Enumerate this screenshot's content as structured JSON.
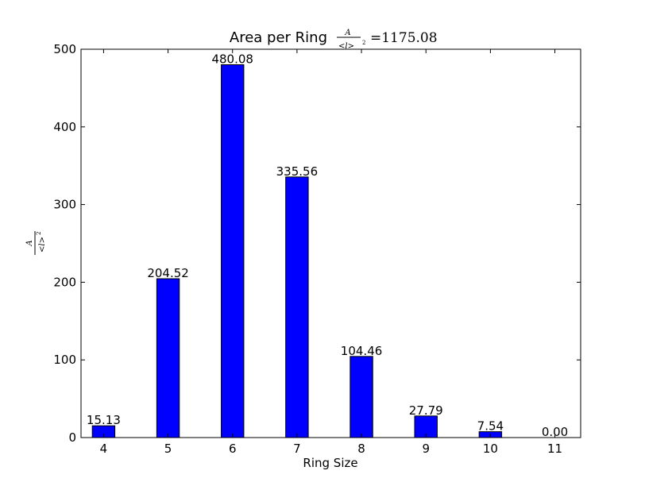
{
  "chart_data": {
    "type": "bar",
    "title": "Area per Ring",
    "title_formula": {
      "numerator": "A",
      "denominator": "<l>",
      "exponent": "2",
      "value": "=1175.08"
    },
    "xlabel": "Ring Size",
    "ylabel_formula": {
      "numerator": "A",
      "denominator": "<l>",
      "exponent": "2"
    },
    "categories": [
      "4",
      "5",
      "6",
      "7",
      "8",
      "9",
      "10",
      "11"
    ],
    "values": [
      15.13,
      204.52,
      480.08,
      335.56,
      104.46,
      27.79,
      7.54,
      0.0
    ],
    "value_labels": [
      "15.13",
      "204.52",
      "480.08",
      "335.56",
      "104.46",
      "27.79",
      "7.54",
      "0.00"
    ],
    "yticks": [
      "0",
      "100",
      "200",
      "300",
      "400",
      "500"
    ],
    "ylim": [
      0,
      500
    ],
    "xlim": [
      3.65,
      11.4
    ],
    "bar_width": 0.35,
    "bar_color": "#0000ff",
    "edge_color": "#000000",
    "grid": false,
    "legend": "none"
  }
}
